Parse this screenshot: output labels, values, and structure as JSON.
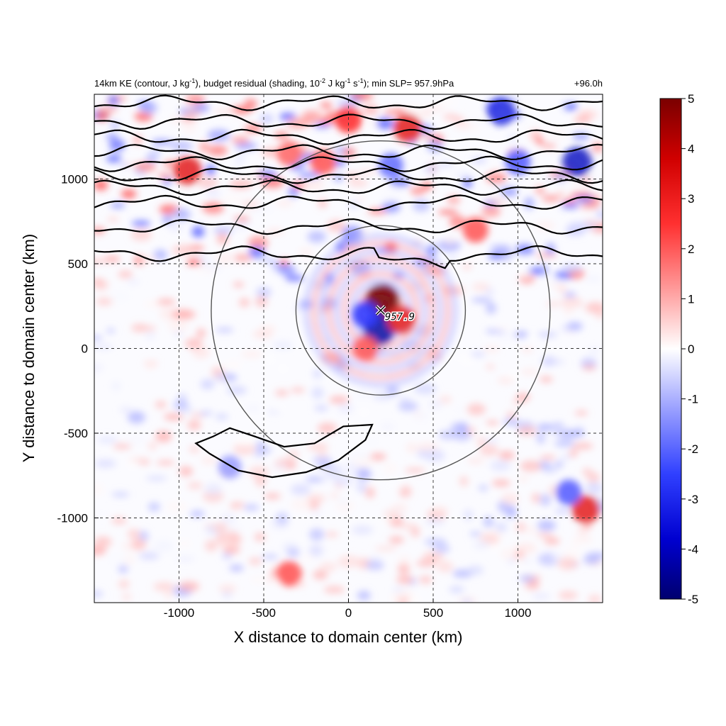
{
  "chart_data": {
    "type": "heatmap",
    "title": {
      "main": "14km KE (contour, J kg",
      "main_sup": "-1",
      "mid1": "), budget residual (shading, 10",
      "mid1_sup": "-2",
      "mid2": " J kg",
      "mid2_sup": "-1",
      "mid3": " s",
      "mid3_sup": "-1",
      "end": "); min SLP= 957.9hPa"
    },
    "time_label": "+96.0h",
    "xlabel": "X distance to domain center (km)",
    "ylabel": "Y distance to domain center (km)",
    "xlim": [
      -1500,
      1500
    ],
    "ylim": [
      -1500,
      1500
    ],
    "xticks": [
      -1000,
      -500,
      0,
      500,
      1000
    ],
    "yticks": [
      -1000,
      -500,
      0,
      500,
      1000
    ],
    "xtick_labels": [
      "-1000",
      "-500",
      "0",
      "500",
      "1000"
    ],
    "ytick_labels": [
      "-1000",
      "-500",
      "0",
      "500",
      "1000"
    ],
    "grid": "dashed",
    "colorbar": {
      "min": -5,
      "max": 5,
      "ticks": [
        5,
        4,
        3,
        2,
        1,
        0,
        -1,
        -2,
        -3,
        -4,
        -5
      ],
      "tick_labels": [
        "5",
        "4",
        "3",
        "2",
        "1",
        "0",
        "-1",
        "-2",
        "-3",
        "-4",
        "-5"
      ],
      "colors": [
        "#800000",
        "#ff0000",
        "#ffffff",
        "#0000ff",
        "#000080"
      ]
    },
    "storm_center": {
      "x": 190,
      "y": 225,
      "label": "957.9"
    },
    "range_rings": [
      {
        "center_x": 190,
        "center_y": 225,
        "radius_km": 500
      },
      {
        "center_x": 190,
        "center_y": 225,
        "radius_km": 1000
      }
    ],
    "ke_contours_y_km": [
      560,
      720,
      860,
      950,
      1020,
      1090,
      1160,
      1250,
      1340,
      1450
    ],
    "lobe_contour": [
      [
        -800,
        -520
      ],
      [
        -700,
        -470
      ],
      [
        -550,
        -520
      ],
      [
        -380,
        -580
      ],
      [
        -200,
        -560
      ],
      [
        -30,
        -460
      ],
      [
        140,
        -450
      ],
      [
        100,
        -540
      ],
      [
        -60,
        -660
      ],
      [
        -250,
        -730
      ],
      [
        -450,
        -760
      ],
      [
        -650,
        -720
      ],
      [
        -820,
        -620
      ],
      [
        -900,
        -560
      ]
    ],
    "features": [
      {
        "x": 200,
        "y": 280,
        "value": 5
      },
      {
        "x": 180,
        "y": 110,
        "value": -4
      },
      {
        "x": 310,
        "y": 170,
        "value": 3
      },
      {
        "x": 100,
        "y": 200,
        "value": -2.5
      },
      {
        "x": 100,
        "y": 0,
        "value": 2
      },
      {
        "x": -150,
        "y": 1100,
        "value": 2
      },
      {
        "x": 0,
        "y": 1350,
        "value": 2.5
      },
      {
        "x": 350,
        "y": 1300,
        "value": 3
      },
      {
        "x": 900,
        "y": 1400,
        "value": -3
      },
      {
        "x": 1350,
        "y": 1100,
        "value": -3.5
      },
      {
        "x": 1000,
        "y": 1100,
        "value": -2
      },
      {
        "x": -950,
        "y": 1050,
        "value": 3
      },
      {
        "x": 750,
        "y": 700,
        "value": 2
      },
      {
        "x": 1400,
        "y": -950,
        "value": 3
      },
      {
        "x": 1300,
        "y": -850,
        "value": -2
      },
      {
        "x": -350,
        "y": -1330,
        "value": 2
      },
      {
        "x": -700,
        "y": -700,
        "value": -1.2
      },
      {
        "x": -350,
        "y": 1150,
        "value": 1.8
      },
      {
        "x": 250,
        "y": 1080,
        "value": -1.8
      }
    ]
  }
}
